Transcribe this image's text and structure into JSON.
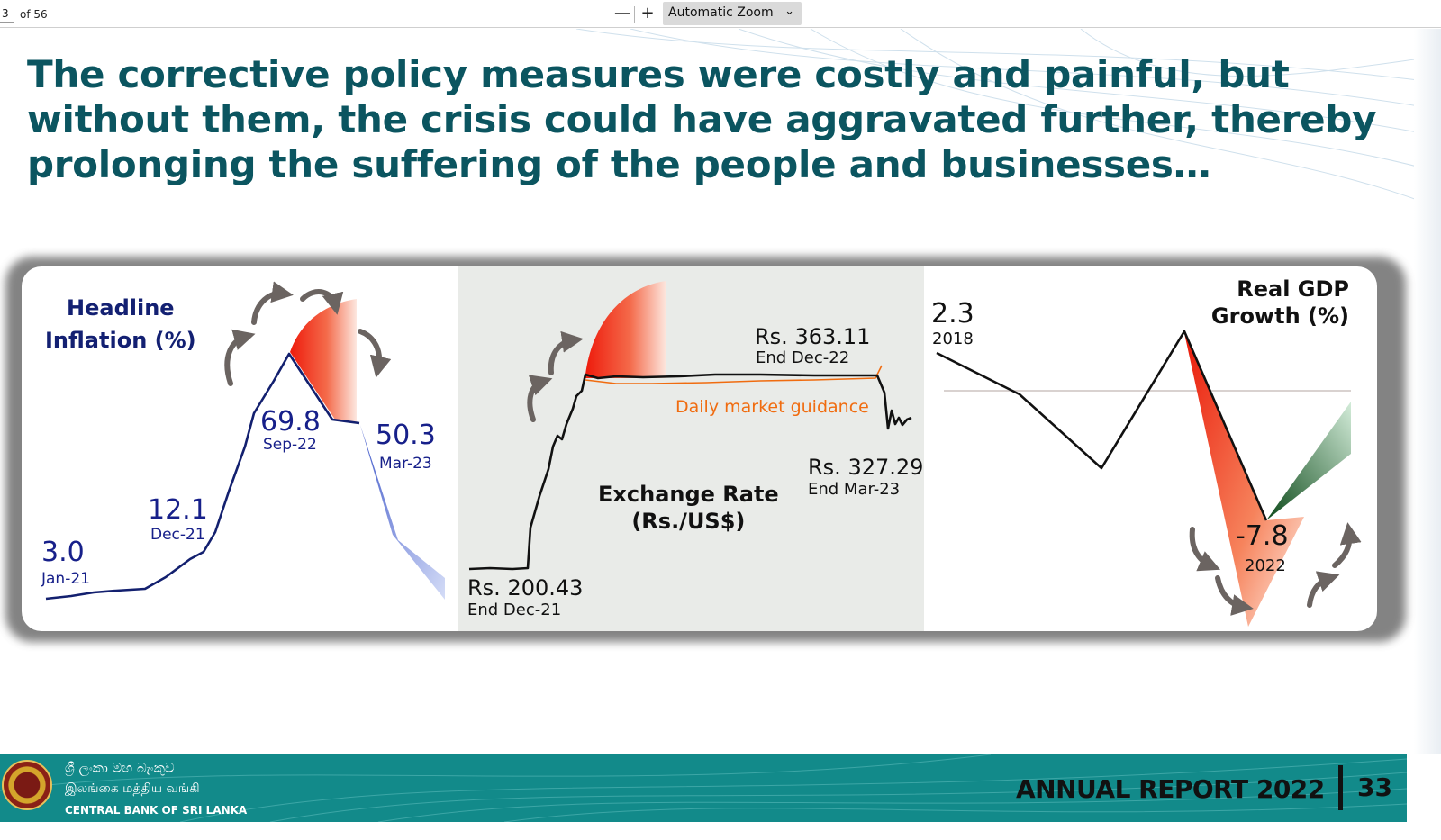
{
  "toolbar": {
    "page_number": "3",
    "page_count": "of 56",
    "zoom_out_label": "—",
    "zoom_in_label": "+",
    "zoom_value": "Automatic Zoom"
  },
  "slide": {
    "headline": "The corrective policy measures were costly and painful, but without them, the crisis could have aggravated further, thereby prolonging the suffering of the people and businesses…"
  },
  "chart_data": [
    {
      "type": "line",
      "title": [
        "Headline",
        "Inflation (%)"
      ],
      "series": [
        {
          "values": [
            3.0,
            12.1,
            69.8,
            50.3
          ]
        }
      ],
      "labels": [
        "Jan-21",
        "Dec-21",
        "Sep-22",
        "Mar-23"
      ],
      "annotations": [
        {
          "value": "3.0",
          "date": "Jan-21"
        },
        {
          "value": "12.1",
          "date": "Dec-21"
        },
        {
          "value": "69.8",
          "date": "Sep-22"
        },
        {
          "value": "50.3",
          "date": "Mar-23"
        }
      ]
    },
    {
      "type": "line",
      "title": [
        "Exchange Rate",
        "(Rs./US$)"
      ],
      "series": [
        {
          "values": [
            200.43,
            363.11,
            327.29
          ]
        },
        {
          "name": "Daily market guidance"
        }
      ],
      "annotations": [
        {
          "value": "Rs. 200.43",
          "date": "End Dec-21"
        },
        {
          "value": "Rs. 363.11",
          "date": "End Dec-22"
        },
        {
          "value": "Rs. 327.29",
          "date": "End Mar-23"
        }
      ]
    },
    {
      "type": "line",
      "title": [
        "Real GDP",
        "Growth (%)"
      ],
      "series": [
        {
          "values": [
            2.3,
            -7.8
          ]
        }
      ],
      "annotations": [
        {
          "value": "2.3",
          "date": "2018"
        },
        {
          "value": "-7.8",
          "date": "2022"
        }
      ]
    }
  ],
  "colors": {
    "headline": "#0b5560",
    "inflation": "#17208a",
    "guidance": "#f06c10",
    "footer": "#128a8a"
  },
  "footer": {
    "bank_sinhala": "ශ්‍රී ලංකා මහ බැංකුව",
    "bank_tamil": "இலங்கை மத்திய வங்கி",
    "bank_english": "CENTRAL BANK OF SRI LANKA",
    "report": "ANNUAL REPORT 2022",
    "page": "33"
  }
}
